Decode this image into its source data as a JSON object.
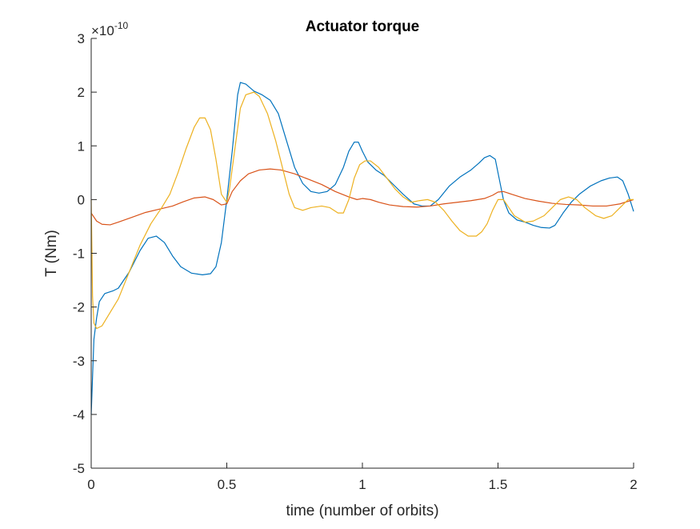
{
  "chart_data": {
    "type": "line",
    "title": "Actuator torque",
    "xlabel": "time (number of orbits)",
    "ylabel": "T (Nm)",
    "y_exponent_base": "×10",
    "y_exponent_power": "-10",
    "xlim": [
      0,
      2
    ],
    "ylim": [
      -5,
      3
    ],
    "grid": false,
    "legend": "none",
    "x_ticks": [
      0,
      0.5,
      1,
      1.5,
      2
    ],
    "x_tick_labels": [
      "0",
      "0.5",
      "1",
      "1.5",
      "2"
    ],
    "y_ticks": [
      -5,
      -4,
      -3,
      -2,
      -1,
      0,
      1,
      2,
      3
    ],
    "y_tick_labels": [
      "-5",
      "-4",
      "-3",
      "-2",
      "-1",
      "0",
      "1",
      "2",
      "3"
    ],
    "series": [
      {
        "color": "#0072BD",
        "points": [
          [
            0,
            -4.0
          ],
          [
            0.01,
            -2.6
          ],
          [
            0.02,
            -2.2
          ],
          [
            0.03,
            -1.9
          ],
          [
            0.05,
            -1.75
          ],
          [
            0.08,
            -1.7
          ],
          [
            0.1,
            -1.65
          ],
          [
            0.14,
            -1.35
          ],
          [
            0.18,
            -0.95
          ],
          [
            0.21,
            -0.72
          ],
          [
            0.24,
            -0.68
          ],
          [
            0.27,
            -0.8
          ],
          [
            0.3,
            -1.05
          ],
          [
            0.33,
            -1.25
          ],
          [
            0.37,
            -1.37
          ],
          [
            0.41,
            -1.4
          ],
          [
            0.44,
            -1.38
          ],
          [
            0.46,
            -1.25
          ],
          [
            0.48,
            -0.8
          ],
          [
            0.5,
            0.0
          ],
          [
            0.52,
            0.9
          ],
          [
            0.54,
            1.95
          ],
          [
            0.55,
            2.18
          ],
          [
            0.57,
            2.15
          ],
          [
            0.6,
            2.02
          ],
          [
            0.63,
            1.95
          ],
          [
            0.66,
            1.85
          ],
          [
            0.69,
            1.6
          ],
          [
            0.72,
            1.1
          ],
          [
            0.75,
            0.6
          ],
          [
            0.78,
            0.3
          ],
          [
            0.81,
            0.15
          ],
          [
            0.84,
            0.12
          ],
          [
            0.87,
            0.15
          ],
          [
            0.9,
            0.28
          ],
          [
            0.93,
            0.6
          ],
          [
            0.95,
            0.9
          ],
          [
            0.97,
            1.07
          ],
          [
            0.985,
            1.07
          ],
          [
            1.0,
            0.9
          ],
          [
            1.02,
            0.7
          ],
          [
            1.05,
            0.55
          ],
          [
            1.08,
            0.45
          ],
          [
            1.11,
            0.3
          ],
          [
            1.15,
            0.1
          ],
          [
            1.19,
            -0.08
          ],
          [
            1.22,
            -0.12
          ],
          [
            1.25,
            -0.12
          ],
          [
            1.28,
            0.0
          ],
          [
            1.32,
            0.25
          ],
          [
            1.36,
            0.42
          ],
          [
            1.4,
            0.55
          ],
          [
            1.43,
            0.68
          ],
          [
            1.45,
            0.78
          ],
          [
            1.47,
            0.82
          ],
          [
            1.49,
            0.75
          ],
          [
            1.5,
            0.5
          ],
          [
            1.52,
            0.0
          ],
          [
            1.54,
            -0.25
          ],
          [
            1.57,
            -0.38
          ],
          [
            1.6,
            -0.42
          ],
          [
            1.63,
            -0.48
          ],
          [
            1.66,
            -0.52
          ],
          [
            1.69,
            -0.53
          ],
          [
            1.71,
            -0.48
          ],
          [
            1.74,
            -0.25
          ],
          [
            1.77,
            -0.05
          ],
          [
            1.8,
            0.1
          ],
          [
            1.84,
            0.25
          ],
          [
            1.88,
            0.35
          ],
          [
            1.91,
            0.4
          ],
          [
            1.94,
            0.42
          ],
          [
            1.96,
            0.35
          ],
          [
            1.98,
            0.1
          ],
          [
            2.0,
            -0.22
          ]
        ]
      },
      {
        "color": "#D95319",
        "points": [
          [
            0,
            -0.25
          ],
          [
            0.02,
            -0.4
          ],
          [
            0.04,
            -0.46
          ],
          [
            0.07,
            -0.47
          ],
          [
            0.1,
            -0.42
          ],
          [
            0.15,
            -0.33
          ],
          [
            0.2,
            -0.24
          ],
          [
            0.25,
            -0.18
          ],
          [
            0.3,
            -0.12
          ],
          [
            0.34,
            -0.04
          ],
          [
            0.38,
            0.03
          ],
          [
            0.42,
            0.05
          ],
          [
            0.45,
            0.0
          ],
          [
            0.48,
            -0.1
          ],
          [
            0.5,
            -0.08
          ],
          [
            0.52,
            0.15
          ],
          [
            0.55,
            0.35
          ],
          [
            0.58,
            0.48
          ],
          [
            0.62,
            0.55
          ],
          [
            0.66,
            0.57
          ],
          [
            0.7,
            0.55
          ],
          [
            0.75,
            0.48
          ],
          [
            0.8,
            0.38
          ],
          [
            0.85,
            0.28
          ],
          [
            0.9,
            0.15
          ],
          [
            0.95,
            0.05
          ],
          [
            0.98,
            0.0
          ],
          [
            1.0,
            0.02
          ],
          [
            1.03,
            0.0
          ],
          [
            1.06,
            -0.05
          ],
          [
            1.1,
            -0.1
          ],
          [
            1.15,
            -0.13
          ],
          [
            1.2,
            -0.14
          ],
          [
            1.25,
            -0.12
          ],
          [
            1.3,
            -0.08
          ],
          [
            1.35,
            -0.05
          ],
          [
            1.4,
            -0.02
          ],
          [
            1.45,
            0.02
          ],
          [
            1.48,
            0.08
          ],
          [
            1.5,
            0.14
          ],
          [
            1.52,
            0.15
          ],
          [
            1.55,
            0.1
          ],
          [
            1.6,
            0.02
          ],
          [
            1.65,
            -0.03
          ],
          [
            1.7,
            -0.07
          ],
          [
            1.75,
            -0.09
          ],
          [
            1.8,
            -0.1
          ],
          [
            1.85,
            -0.12
          ],
          [
            1.9,
            -0.12
          ],
          [
            1.95,
            -0.08
          ],
          [
            2.0,
            0.0
          ]
        ]
      },
      {
        "color": "#EDB120",
        "points": [
          [
            0,
            0.0
          ],
          [
            0.005,
            -1.8
          ],
          [
            0.01,
            -2.3
          ],
          [
            0.02,
            -2.4
          ],
          [
            0.04,
            -2.35
          ],
          [
            0.07,
            -2.1
          ],
          [
            0.1,
            -1.85
          ],
          [
            0.14,
            -1.35
          ],
          [
            0.18,
            -0.85
          ],
          [
            0.22,
            -0.45
          ],
          [
            0.26,
            -0.15
          ],
          [
            0.29,
            0.1
          ],
          [
            0.32,
            0.5
          ],
          [
            0.35,
            0.95
          ],
          [
            0.38,
            1.35
          ],
          [
            0.4,
            1.52
          ],
          [
            0.42,
            1.52
          ],
          [
            0.44,
            1.3
          ],
          [
            0.46,
            0.75
          ],
          [
            0.48,
            0.1
          ],
          [
            0.5,
            -0.05
          ],
          [
            0.51,
            0.2
          ],
          [
            0.53,
            0.95
          ],
          [
            0.55,
            1.7
          ],
          [
            0.57,
            1.95
          ],
          [
            0.6,
            2.0
          ],
          [
            0.62,
            1.92
          ],
          [
            0.65,
            1.6
          ],
          [
            0.68,
            1.1
          ],
          [
            0.71,
            0.5
          ],
          [
            0.73,
            0.1
          ],
          [
            0.75,
            -0.15
          ],
          [
            0.78,
            -0.2
          ],
          [
            0.81,
            -0.15
          ],
          [
            0.85,
            -0.12
          ],
          [
            0.88,
            -0.15
          ],
          [
            0.91,
            -0.25
          ],
          [
            0.93,
            -0.25
          ],
          [
            0.95,
            0.0
          ],
          [
            0.97,
            0.4
          ],
          [
            0.99,
            0.65
          ],
          [
            1.01,
            0.72
          ],
          [
            1.03,
            0.72
          ],
          [
            1.06,
            0.6
          ],
          [
            1.09,
            0.4
          ],
          [
            1.12,
            0.2
          ],
          [
            1.15,
            0.05
          ],
          [
            1.18,
            -0.05
          ],
          [
            1.21,
            -0.02
          ],
          [
            1.24,
            0.0
          ],
          [
            1.27,
            -0.05
          ],
          [
            1.3,
            -0.2
          ],
          [
            1.33,
            -0.4
          ],
          [
            1.36,
            -0.58
          ],
          [
            1.39,
            -0.68
          ],
          [
            1.42,
            -0.68
          ],
          [
            1.44,
            -0.6
          ],
          [
            1.46,
            -0.45
          ],
          [
            1.48,
            -0.2
          ],
          [
            1.5,
            0.0
          ],
          [
            1.52,
            0.0
          ],
          [
            1.54,
            -0.15
          ],
          [
            1.56,
            -0.3
          ],
          [
            1.6,
            -0.42
          ],
          [
            1.63,
            -0.4
          ],
          [
            1.67,
            -0.3
          ],
          [
            1.7,
            -0.15
          ],
          [
            1.73,
            0.0
          ],
          [
            1.76,
            0.05
          ],
          [
            1.79,
            0.0
          ],
          [
            1.82,
            -0.15
          ],
          [
            1.86,
            -0.3
          ],
          [
            1.89,
            -0.35
          ],
          [
            1.92,
            -0.3
          ],
          [
            1.95,
            -0.15
          ],
          [
            1.98,
            0.0
          ],
          [
            2.0,
            0.0
          ]
        ]
      }
    ]
  }
}
